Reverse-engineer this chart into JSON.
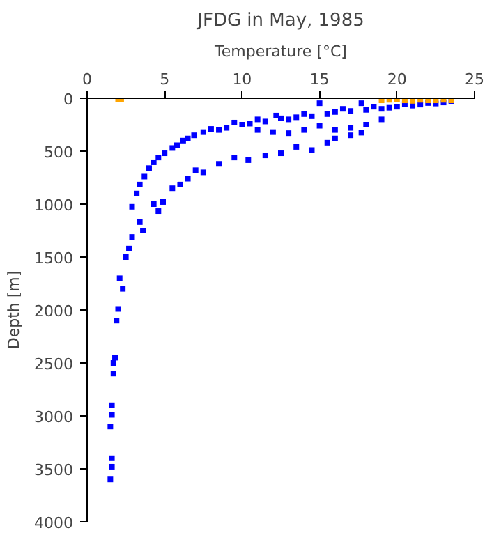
{
  "chart_data": {
    "type": "scatter",
    "title": "JFDG in May, 1985",
    "xlabel": "Temperature [°C]",
    "ylabel": "Depth [m]",
    "xlim": [
      0,
      25
    ],
    "ylim": [
      4000,
      0
    ],
    "xticks": [
      0,
      5,
      10,
      15,
      20,
      25
    ],
    "yticks": [
      0,
      500,
      1000,
      1500,
      2000,
      2500,
      3000,
      3500,
      4000
    ],
    "grid": false,
    "marker": "square",
    "series": [
      {
        "color": "#0000ff",
        "x": [
          23.5,
          23,
          22.5,
          22,
          21.5,
          21,
          20.5,
          20,
          19.5,
          19,
          18.5,
          18,
          17.7,
          17,
          16.5,
          16,
          15.5,
          15,
          14.5,
          14,
          13.5,
          13,
          12.5,
          12.2,
          11.5,
          11,
          10.5,
          10,
          9.5,
          9,
          8.5,
          8,
          7.5,
          6.9,
          6.5,
          6.2,
          5.8,
          5.5,
          5,
          4.6,
          4.3,
          4,
          3.7,
          3.4,
          3.2,
          2.9,
          19,
          18,
          17,
          16,
          15,
          14,
          13,
          12,
          11,
          17.7,
          17,
          16,
          15.5,
          14.5,
          13.5,
          12.5,
          11.5,
          10.4,
          9.5,
          8.5,
          7.5,
          7,
          6.5,
          6,
          5.5,
          4.9,
          4.6,
          4.3,
          3.4,
          3.6,
          2.9,
          2.7,
          2.5,
          2.3,
          2.1,
          2,
          1.9,
          1.7,
          1.7,
          1.8,
          1.6,
          1.6,
          1.5,
          1.6,
          1.5,
          1.6
        ],
        "values": [
          30,
          40,
          50,
          45,
          60,
          70,
          55,
          80,
          90,
          100,
          80,
          110,
          47,
          120,
          100,
          130,
          150,
          47,
          170,
          150,
          180,
          200,
          190,
          164,
          220,
          200,
          240,
          250,
          230,
          280,
          300,
          290,
          320,
          350,
          380,
          400,
          444,
          470,
          520,
          560,
          605,
          660,
          740,
          815,
          900,
          1025,
          200,
          250,
          280,
          300,
          260,
          300,
          330,
          320,
          300,
          325,
          350,
          380,
          420,
          490,
          460,
          520,
          540,
          585,
          560,
          620,
          700,
          680,
          760,
          815,
          850,
          980,
          1066,
          1000,
          1170,
          1250,
          1310,
          1420,
          1500,
          1800,
          1700,
          1990,
          2100,
          2500,
          2600,
          2450,
          2990,
          2900,
          3100,
          3480,
          3600,
          3400
        ]
      },
      {
        "color": "#ffa500",
        "x": [
          2,
          2.2,
          19,
          19.5,
          20,
          20.5,
          21,
          21.5,
          22,
          22.5,
          23,
          23.5
        ],
        "values": [
          10,
          10,
          20,
          15,
          10,
          20,
          25,
          15,
          20,
          20,
          15,
          20
        ]
      }
    ]
  }
}
